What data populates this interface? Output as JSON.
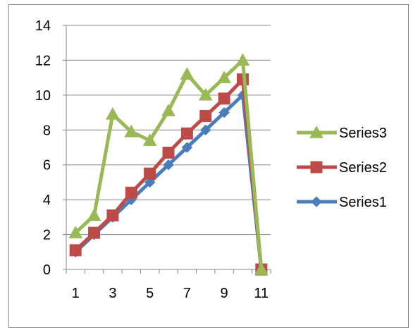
{
  "chart_data": {
    "type": "line",
    "title": "",
    "xlabel": "",
    "ylabel": "",
    "x": [
      1,
      2,
      3,
      4,
      5,
      6,
      7,
      8,
      9,
      10,
      11
    ],
    "x_tick_labels": [
      "1",
      "3",
      "5",
      "7",
      "9",
      "11"
    ],
    "y_tick_labels": [
      "0",
      "2",
      "4",
      "6",
      "8",
      "10",
      "12",
      "14"
    ],
    "ylim": [
      0,
      14
    ],
    "grid": "horizontal",
    "legend_position": "right",
    "series": [
      {
        "name": "Series1",
        "marker": "diamond",
        "color": "#4a7ebb",
        "values": [
          1,
          2,
          3,
          4,
          5,
          6,
          7,
          8,
          9,
          10,
          0
        ]
      },
      {
        "name": "Series2",
        "marker": "square",
        "color": "#be4b48",
        "values": [
          1.1,
          2.1,
          3.1,
          4.4,
          5.5,
          6.7,
          7.8,
          8.8,
          9.8,
          10.9,
          0
        ]
      },
      {
        "name": "Series3",
        "marker": "triangle",
        "color": "#98b954",
        "values": [
          2.1,
          3.1,
          8.9,
          7.9,
          7.4,
          9.1,
          11.2,
          10.0,
          11.0,
          12.0,
          0
        ]
      }
    ]
  }
}
